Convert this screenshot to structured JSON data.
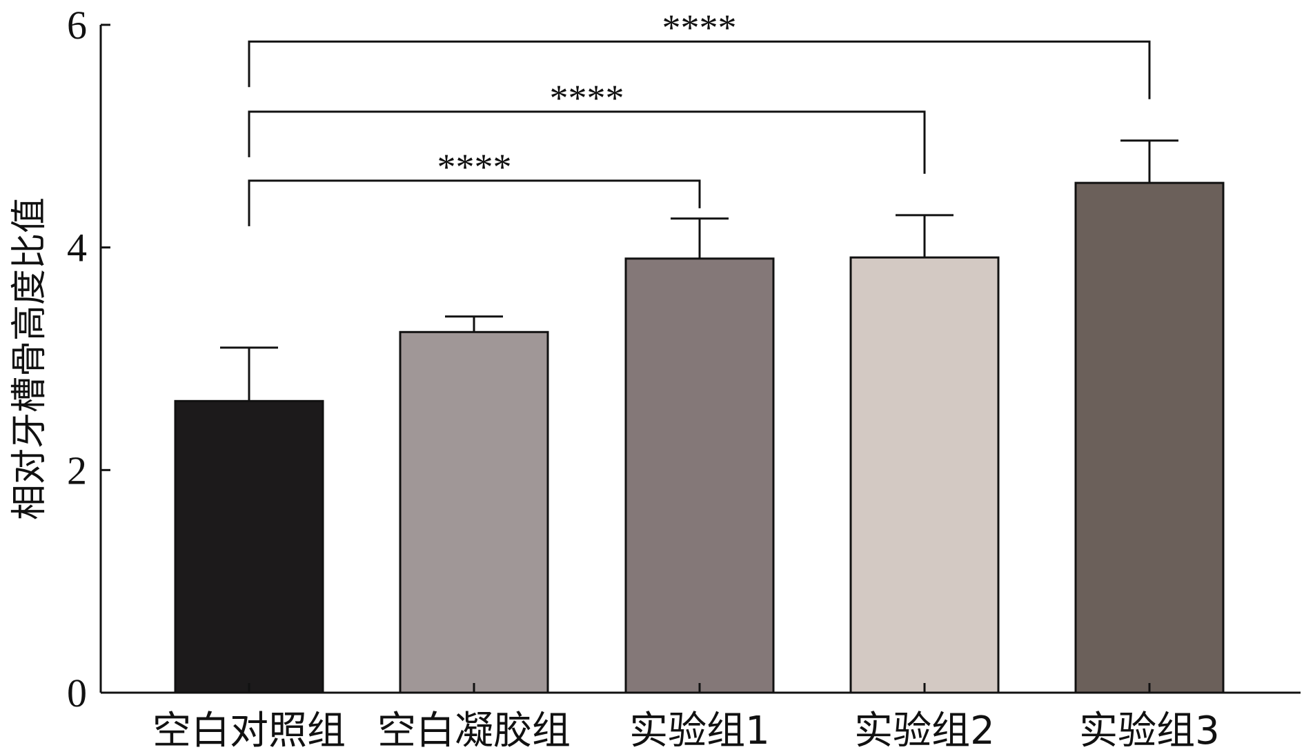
{
  "chart_data": {
    "type": "bar",
    "title": "",
    "xlabel": "",
    "ylabel": "相对牙槽骨高度比值",
    "ylim": [
      0,
      6
    ],
    "yticks": [
      0,
      2,
      4,
      6
    ],
    "grid": false,
    "categories": [
      "空白对照组",
      "空白凝胶组",
      "实验组1",
      "实验组2",
      "实验组3"
    ],
    "values": [
      2.62,
      3.24,
      3.9,
      3.91,
      4.58
    ],
    "errors": [
      0.48,
      0.14,
      0.36,
      0.38,
      0.38
    ],
    "colors": [
      "#1c1a1b",
      "#a09797",
      "#847878",
      "#d3c9c3",
      "#6b605a"
    ],
    "significance": [
      {
        "from": 0,
        "to": 4,
        "label": "****",
        "y": 5.85
      },
      {
        "from": 0,
        "to": 3,
        "label": "****",
        "y": 5.22
      },
      {
        "from": 0,
        "to": 2,
        "label": "****",
        "y": 4.6
      }
    ]
  }
}
